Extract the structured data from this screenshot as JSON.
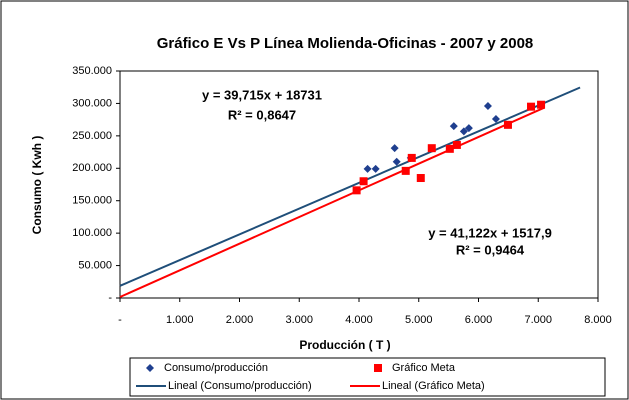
{
  "chart_data": {
    "type": "scatter",
    "title": "Gráfico E Vs P Línea Molienda-Oficinas - 2007 y 2008",
    "x_label": "Producción ( T )",
    "y_label": "Consumo ( Kwh )",
    "xlim": [
      0,
      8000
    ],
    "ylim": [
      0,
      350000
    ],
    "xticks": [
      {
        "value": 0,
        "label": "-"
      },
      {
        "value": 1000,
        "label": "1.000"
      },
      {
        "value": 2000,
        "label": "2.000"
      },
      {
        "value": 3000,
        "label": "3.000"
      },
      {
        "value": 4000,
        "label": "4.000"
      },
      {
        "value": 5000,
        "label": "5.000"
      },
      {
        "value": 6000,
        "label": "6.000"
      },
      {
        "value": 7000,
        "label": "7.000"
      },
      {
        "value": 8000,
        "label": "8.000"
      }
    ],
    "yticks": [
      {
        "value": 0,
        "label": "-"
      },
      {
        "value": 50000,
        "label": "50.000"
      },
      {
        "value": 100000,
        "label": "100.000"
      },
      {
        "value": 150000,
        "label": "150.000"
      },
      {
        "value": 200000,
        "label": "200.000"
      },
      {
        "value": 250000,
        "label": "250.000"
      },
      {
        "value": 300000,
        "label": "300.000"
      },
      {
        "value": 350000,
        "label": "350.000"
      }
    ],
    "series": [
      {
        "name": "Consumo/producción",
        "color": "#1f3f8f",
        "marker": "diamond",
        "x": [
          4144,
          4279,
          4597,
          4631,
          4866,
          5587,
          5755,
          5839,
          6158,
          6292
        ],
        "values": [
          199000,
          199000,
          231000,
          210000,
          216000,
          265000,
          257000,
          262000,
          296000,
          276000
        ]
      },
      {
        "name": "Gráfico Meta",
        "color": "#ff0000",
        "marker": "square",
        "x": [
          3960,
          4077,
          4782,
          4883,
          5034,
          5218,
          5520,
          5638,
          6493,
          6879,
          7047
        ],
        "values": [
          166000,
          180000,
          196000,
          216000,
          185000,
          231000,
          230000,
          236000,
          267000,
          295000,
          298000
        ]
      }
    ],
    "trendlines": [
      {
        "name": "Lineal (Consumo/producción)",
        "color": "#1f4e79",
        "x": [
          0,
          7700
        ],
        "values": [
          18731,
          324537
        ]
      },
      {
        "name": "Lineal (Gráfico Meta)",
        "color": "#ff0000",
        "x": [
          0,
          7100
        ],
        "values": [
          1518,
          293484
        ]
      }
    ],
    "annotations": [
      {
        "text": "y = 39,715x + 18731",
        "text2": "R² = 0,8647",
        "color": "#1f4e99"
      },
      {
        "text": "y = 41,122x + 1517,9",
        "text2": "R² = 0,9464",
        "color": "#ff0000"
      }
    ],
    "grid": false
  }
}
